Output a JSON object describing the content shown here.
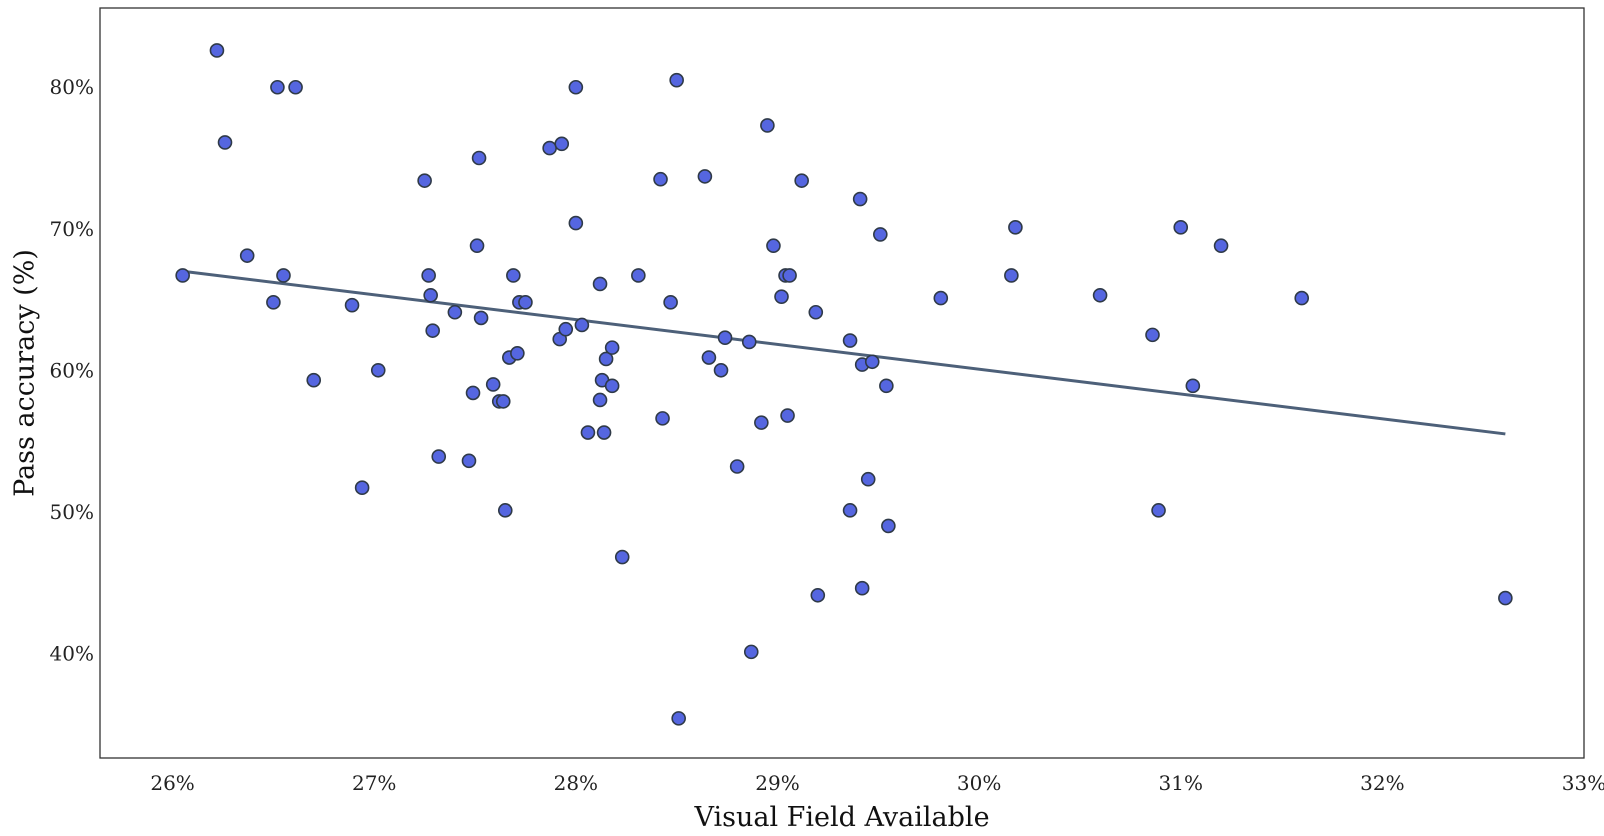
{
  "chart_data": {
    "type": "scatter",
    "title": "",
    "xlabel": "Visual Field Available",
    "ylabel": "Pass accuracy (%)",
    "xlim": [
      25.64,
      33.0
    ],
    "ylim": [
      32.6,
      85.6
    ],
    "x_ticks": [
      26,
      27,
      28,
      29,
      30,
      31,
      32,
      33
    ],
    "x_tick_labels": [
      "26%",
      "27%",
      "28%",
      "29%",
      "30%",
      "31%",
      "32%",
      "33%"
    ],
    "y_ticks": [
      40,
      50,
      60,
      70,
      80
    ],
    "y_tick_labels": [
      "40%",
      "50%",
      "60%",
      "70%",
      "80%"
    ],
    "grid": false,
    "legend": "none",
    "points": [
      [
        26.05,
        66.7
      ],
      [
        26.22,
        82.6
      ],
      [
        26.26,
        76.1
      ],
      [
        26.37,
        68.1
      ],
      [
        26.5,
        64.8
      ],
      [
        26.52,
        80.0
      ],
      [
        26.55,
        66.7
      ],
      [
        26.61,
        80.0
      ],
      [
        26.7,
        59.3
      ],
      [
        26.89,
        64.6
      ],
      [
        26.94,
        51.7
      ],
      [
        27.02,
        60.0
      ],
      [
        27.25,
        73.4
      ],
      [
        27.27,
        66.7
      ],
      [
        27.28,
        65.3
      ],
      [
        27.29,
        62.8
      ],
      [
        27.32,
        53.9
      ],
      [
        27.4,
        64.1
      ],
      [
        27.47,
        53.6
      ],
      [
        27.49,
        58.4
      ],
      [
        27.51,
        68.8
      ],
      [
        27.52,
        75.0
      ],
      [
        27.53,
        63.7
      ],
      [
        27.59,
        59.0
      ],
      [
        27.62,
        57.8
      ],
      [
        27.64,
        57.8
      ],
      [
        27.65,
        50.1
      ],
      [
        27.67,
        60.9
      ],
      [
        27.69,
        66.7
      ],
      [
        27.71,
        61.2
      ],
      [
        27.72,
        64.8
      ],
      [
        27.75,
        64.8
      ],
      [
        27.87,
        75.7
      ],
      [
        27.92,
        62.2
      ],
      [
        27.93,
        76.0
      ],
      [
        27.95,
        62.9
      ],
      [
        28.0,
        80.0
      ],
      [
        28.0,
        70.4
      ],
      [
        28.03,
        63.2
      ],
      [
        28.06,
        55.6
      ],
      [
        28.12,
        66.1
      ],
      [
        28.12,
        57.9
      ],
      [
        28.13,
        59.3
      ],
      [
        28.14,
        55.6
      ],
      [
        28.15,
        60.8
      ],
      [
        28.18,
        58.9
      ],
      [
        28.18,
        61.6
      ],
      [
        28.23,
        46.8
      ],
      [
        28.31,
        66.7
      ],
      [
        28.42,
        73.5
      ],
      [
        28.43,
        56.6
      ],
      [
        28.47,
        64.8
      ],
      [
        28.5,
        80.5
      ],
      [
        28.51,
        35.4
      ],
      [
        28.64,
        73.7
      ],
      [
        28.66,
        60.9
      ],
      [
        28.72,
        60.0
      ],
      [
        28.74,
        62.3
      ],
      [
        28.8,
        53.2
      ],
      [
        28.86,
        62.0
      ],
      [
        28.87,
        40.1
      ],
      [
        28.92,
        56.3
      ],
      [
        28.95,
        77.3
      ],
      [
        28.98,
        68.8
      ],
      [
        29.02,
        65.2
      ],
      [
        29.04,
        66.7
      ],
      [
        29.05,
        56.8
      ],
      [
        29.06,
        66.7
      ],
      [
        29.12,
        73.4
      ],
      [
        29.19,
        64.1
      ],
      [
        29.2,
        44.1
      ],
      [
        29.36,
        50.1
      ],
      [
        29.36,
        62.1
      ],
      [
        29.41,
        72.1
      ],
      [
        29.42,
        60.4
      ],
      [
        29.42,
        44.6
      ],
      [
        29.45,
        52.3
      ],
      [
        29.47,
        60.6
      ],
      [
        29.51,
        69.6
      ],
      [
        29.54,
        58.9
      ],
      [
        29.55,
        49.0
      ],
      [
        29.81,
        65.1
      ],
      [
        30.16,
        66.7
      ],
      [
        30.18,
        70.1
      ],
      [
        30.6,
        65.3
      ],
      [
        30.86,
        62.5
      ],
      [
        30.89,
        50.1
      ],
      [
        31.0,
        70.1
      ],
      [
        31.06,
        58.9
      ],
      [
        31.2,
        68.8
      ],
      [
        31.6,
        65.1
      ],
      [
        32.61,
        43.9
      ]
    ],
    "trendline": {
      "x": [
        26.05,
        32.61
      ],
      "y": [
        67.0,
        55.5
      ]
    },
    "colors": {
      "marker_fill": "#5566e0",
      "marker_stroke": "#2f3a48",
      "trendline": "#4d6079",
      "frame": "#333333"
    }
  }
}
